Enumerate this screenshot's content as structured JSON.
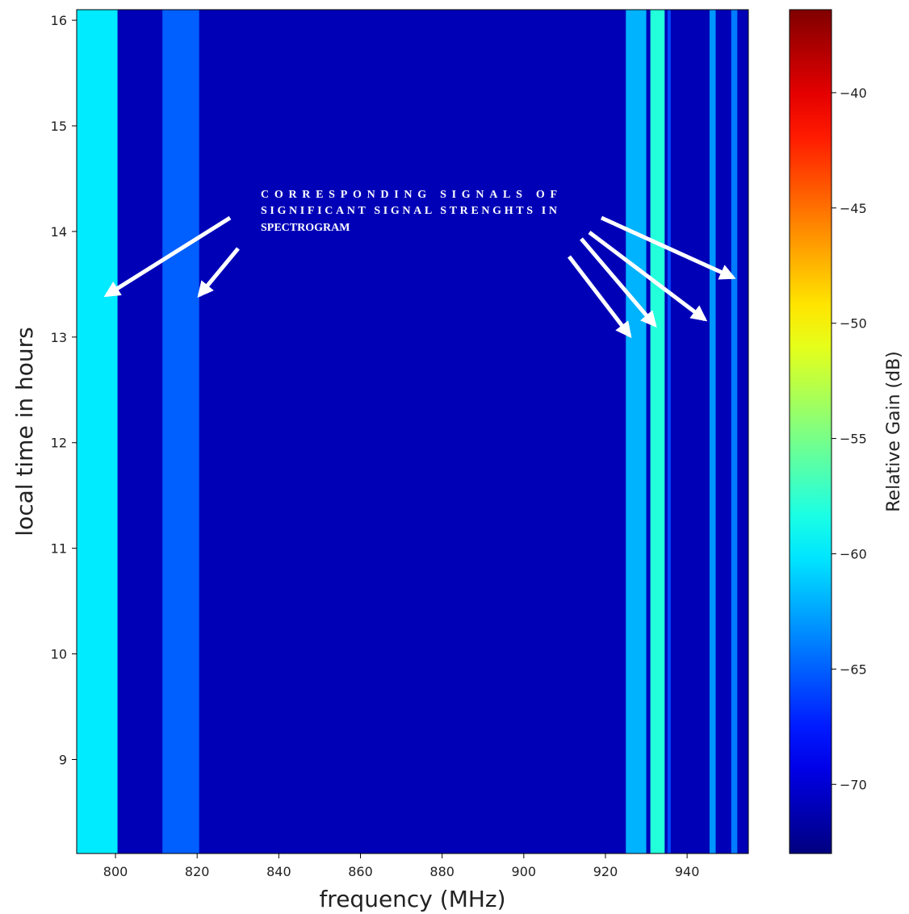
{
  "chart_data": {
    "type": "spectrogram",
    "xlabel": "frequency (MHz)",
    "ylabel": "local time in hours",
    "colorbar_label": "Relative Gain (dB)",
    "colormap": "jet",
    "xlim": [
      790.5,
      955
    ],
    "ylim": [
      8.11,
      16.1
    ],
    "clim": [
      -73,
      -36.4
    ],
    "xticks": [
      800,
      820,
      840,
      860,
      880,
      900,
      920,
      940
    ],
    "yticks": [
      9,
      10,
      11,
      12,
      13,
      14,
      15,
      16
    ],
    "cticks": [
      {
        "value": -40,
        "label": "−40"
      },
      {
        "value": -45,
        "label": "−45"
      },
      {
        "value": -50,
        "label": "−50"
      },
      {
        "value": -55,
        "label": "−55"
      },
      {
        "value": -60,
        "label": "−60"
      },
      {
        "value": -65,
        "label": "−65"
      },
      {
        "value": -70,
        "label": "−70"
      }
    ],
    "background_value": -71,
    "bands": [
      {
        "from": 790.5,
        "to": 800.5,
        "value": -60
      },
      {
        "from": 811.5,
        "to": 820.5,
        "value": -65
      },
      {
        "from": 925,
        "to": 930,
        "value": -62
      },
      {
        "from": 931,
        "to": 934.5,
        "value": -58
      },
      {
        "from": 935.2,
        "to": 936,
        "value": -66
      },
      {
        "from": 945.5,
        "to": 947,
        "value": -63
      },
      {
        "from": 950.8,
        "to": 952.3,
        "value": -64
      }
    ],
    "annotation": [
      "CORRESPONDING SIGNALS OF",
      "SIGNIFICANT SIGNAL STRENGHTS IN",
      "SPECTROGRAM"
    ]
  }
}
